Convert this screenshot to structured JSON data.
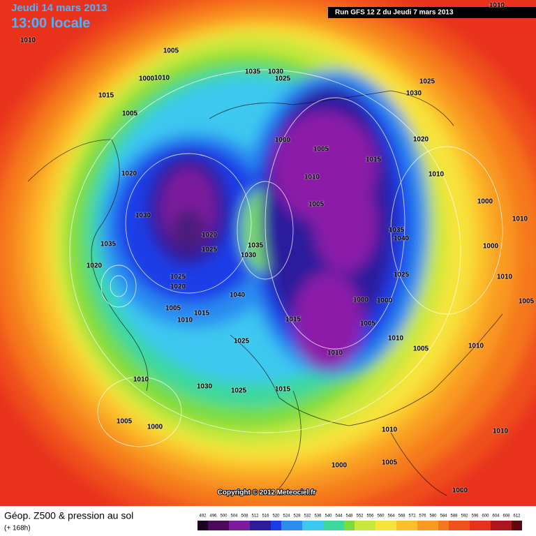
{
  "header": {
    "date": "Jeudi 14 mars 2013",
    "time": "13:00 locale",
    "run": "Run GFS 12 Z du Jeudi 7 mars 2013"
  },
  "copyright": "Copyright © 2012 Meteociel.fr",
  "footer": {
    "title": "Géop. Z500 & pression au sol",
    "forecast": "(+ 168h)"
  },
  "legend": {
    "values": [
      492,
      496,
      500,
      504,
      508,
      512,
      516,
      520,
      524,
      528,
      532,
      536,
      540,
      544,
      548,
      552,
      556,
      560,
      564,
      568,
      572,
      576,
      580,
      584,
      588,
      592,
      596,
      600,
      604,
      608,
      612
    ]
  },
  "isobar_labels": [
    1010,
    1005,
    1000,
    1010,
    1035,
    1030,
    1025,
    1015,
    1005,
    1030,
    1025,
    1000,
    1005,
    1015,
    1020,
    1010,
    1020,
    1010,
    1005,
    1000,
    1030,
    1020,
    1035,
    1040,
    1010,
    1035,
    1025,
    1035,
    1030,
    1000,
    1020,
    1025,
    1025,
    1010,
    1020,
    1040,
    1000,
    1000,
    1005,
    1005,
    1010,
    1015,
    1015,
    1005,
    1025,
    1010,
    1005,
    1010,
    1010,
    1010,
    1030,
    1025,
    1015,
    1005,
    1000,
    1010,
    1010,
    1000,
    1005,
    1000,
    1010
  ]
}
